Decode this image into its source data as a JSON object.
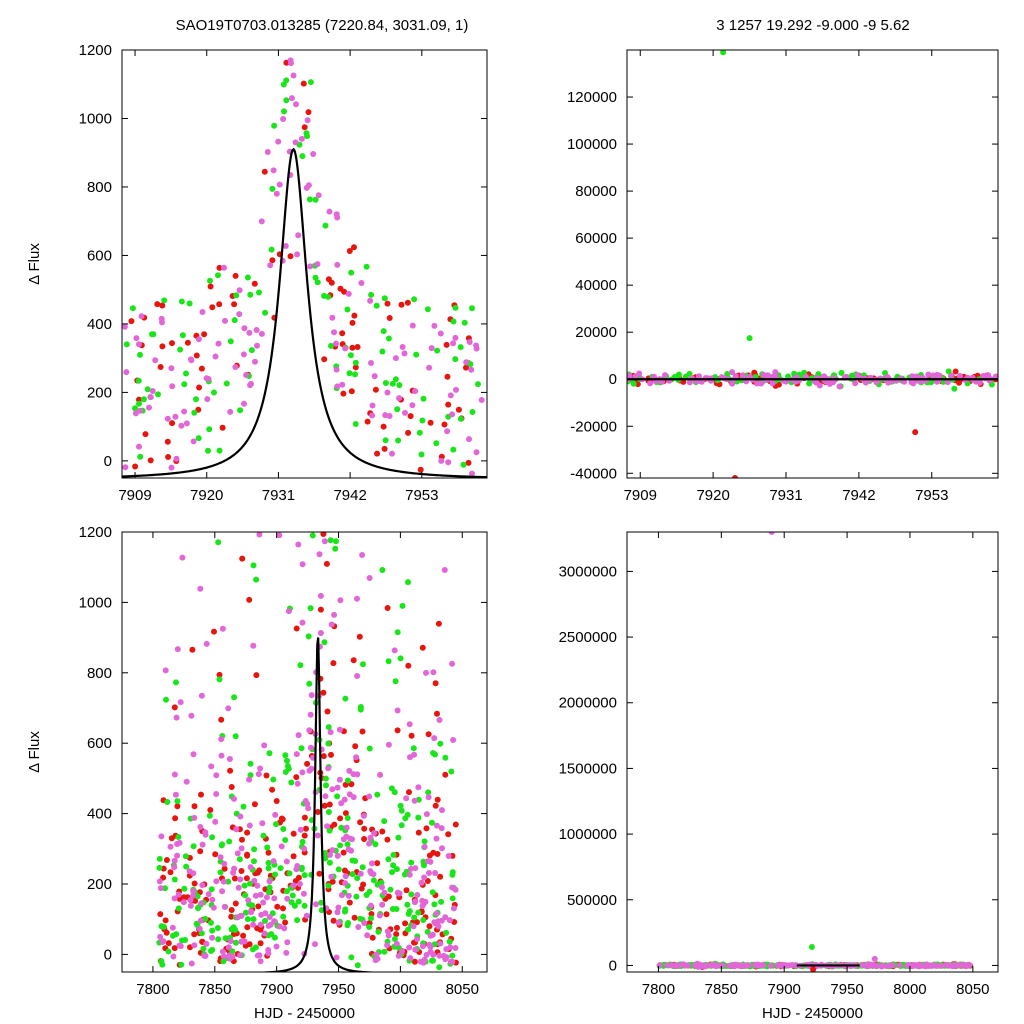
{
  "header": {
    "left_title": "SAO19T0703.013285 (7220.84, 3031.09,    1)",
    "right_title": "3   1257   19.292   -9.000   -9   5.62"
  },
  "colors": {
    "red": "#e8150f",
    "green": "#19e619",
    "pink": "#e366d9",
    "curve": "#000000"
  },
  "chart_data": [
    {
      "type": "scatter",
      "panel": "top-left",
      "xlabel": "",
      "ylabel": "Δ Flux",
      "xlim": [
        7907,
        7963
      ],
      "ylim": [
        -50,
        1200
      ],
      "xticks": [
        7909,
        7920,
        7931,
        7942,
        7953
      ],
      "yticks": [
        0,
        200,
        400,
        600,
        800,
        1000,
        1200
      ],
      "model_curve": {
        "shape": "lorentzian",
        "center": 7933.3,
        "peak": 910,
        "hwhm": 2.6,
        "baseline": -55
      },
      "series": [
        {
          "color": "red",
          "count": 90
        },
        {
          "color": "green",
          "count": 110
        },
        {
          "color": "pink",
          "count": 130
        }
      ]
    },
    {
      "type": "scatter",
      "panel": "top-right",
      "xlabel": "",
      "ylabel": "",
      "xlim": [
        7907,
        7963
      ],
      "ylim": [
        -42000,
        140000
      ],
      "xticks": [
        7909,
        7920,
        7931,
        7942,
        7953
      ],
      "yticks": [
        -40000,
        -20000,
        0,
        20000,
        40000,
        60000,
        80000,
        100000,
        120000
      ],
      "outliers": [
        {
          "x": 7921.5,
          "y": 139000,
          "color": "green"
        },
        {
          "x": 7925.5,
          "y": 17500,
          "color": "green"
        },
        {
          "x": 7923.3,
          "y": -42000,
          "color": "red"
        },
        {
          "x": 7950.5,
          "y": -22500,
          "color": "red"
        }
      ],
      "series": [
        {
          "color": "red",
          "count": 90
        },
        {
          "color": "green",
          "count": 110
        },
        {
          "color": "pink",
          "count": 130
        }
      ]
    },
    {
      "type": "scatter",
      "panel": "bottom-left",
      "xlabel": "HJD - 2450000",
      "ylabel": "Δ Flux",
      "xlim": [
        7775,
        8070
      ],
      "ylim": [
        -50,
        1200
      ],
      "xticks": [
        7800,
        7850,
        7900,
        7950,
        8000,
        8050
      ],
      "yticks": [
        0,
        200,
        400,
        600,
        800,
        1000,
        1200
      ],
      "model_curve": {
        "shape": "lorentzian",
        "center": 7933.3,
        "peak": 910,
        "hwhm": 2.6,
        "baseline": -55
      },
      "series": [
        {
          "color": "red",
          "count": 260
        },
        {
          "color": "green",
          "count": 300
        },
        {
          "color": "pink",
          "count": 330
        }
      ]
    },
    {
      "type": "scatter",
      "panel": "bottom-right",
      "xlabel": "HJD - 2450000",
      "ylabel": "",
      "xlim": [
        7775,
        8070
      ],
      "ylim": [
        -50000,
        3300000
      ],
      "xticks": [
        7800,
        7850,
        7900,
        7950,
        8000,
        8050
      ],
      "yticks": [
        0,
        500000,
        1000000,
        1500000,
        2000000,
        2500000,
        3000000
      ],
      "outliers": [
        {
          "x": 7890,
          "y": 3300000,
          "color": "pink"
        },
        {
          "x": 7922,
          "y": 140000,
          "color": "green"
        },
        {
          "x": 7923,
          "y": -30000,
          "color": "red"
        },
        {
          "x": 7972,
          "y": 50000,
          "color": "pink"
        }
      ],
      "series": [
        {
          "color": "red",
          "count": 120
        },
        {
          "color": "green",
          "count": 260
        },
        {
          "color": "pink",
          "count": 140
        }
      ]
    }
  ]
}
